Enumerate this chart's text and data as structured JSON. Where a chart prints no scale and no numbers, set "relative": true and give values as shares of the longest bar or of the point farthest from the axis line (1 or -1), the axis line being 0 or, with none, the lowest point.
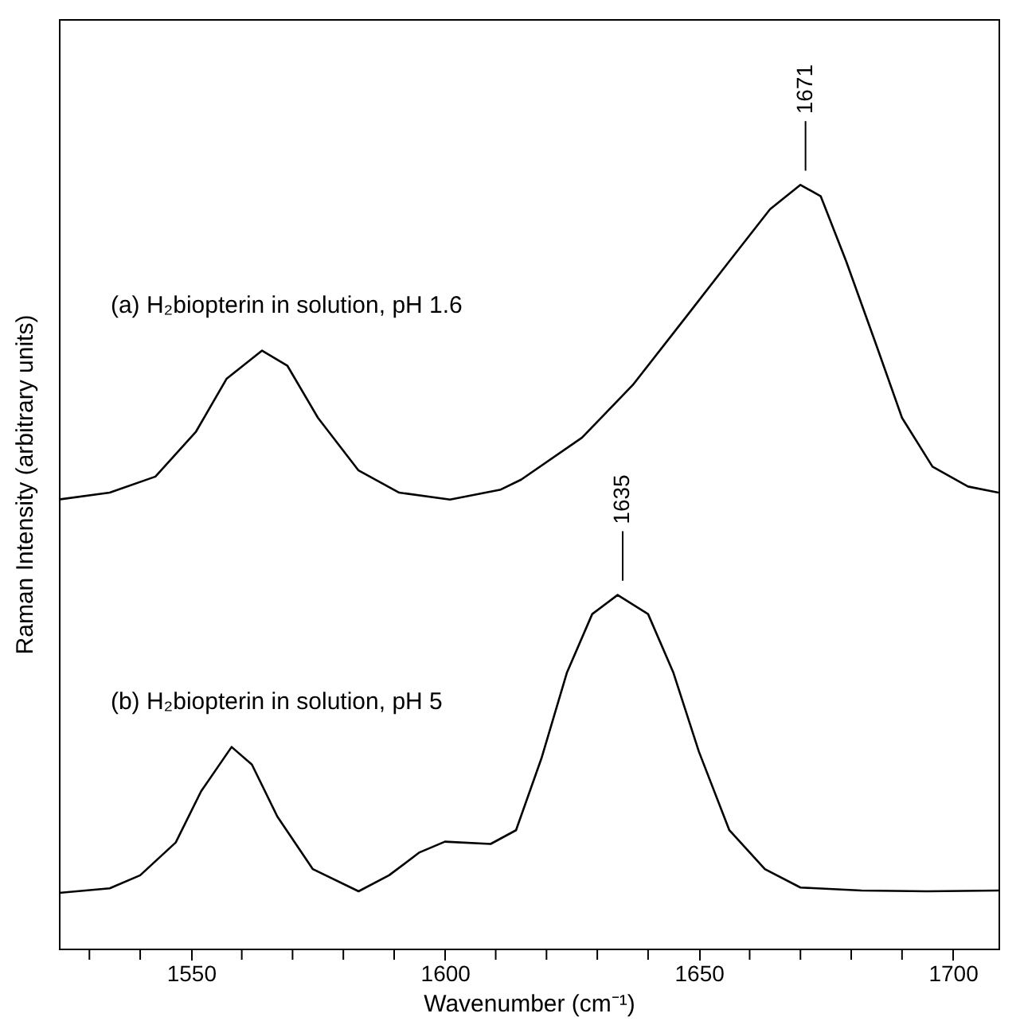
{
  "chart_data": {
    "type": "line",
    "relative": true,
    "xlabel": "Wavenumber (cm⁻¹)",
    "ylabel": "Raman Intensity (arbitrary units)",
    "xlim": [
      1524,
      1709
    ],
    "xticks": [
      {
        "value": 1530,
        "label": null
      },
      {
        "value": 1540,
        "label": null
      },
      1550,
      {
        "value": 1560,
        "label": null
      },
      {
        "value": 1570,
        "label": null
      },
      {
        "value": 1580,
        "label": null
      },
      {
        "value": 1590,
        "label": null
      },
      1600,
      {
        "value": 1610,
        "label": null
      },
      {
        "value": 1620,
        "label": null
      },
      {
        "value": 1630,
        "label": null
      },
      {
        "value": 1640,
        "label": null
      },
      1650,
      {
        "value": 1660,
        "label": null
      },
      {
        "value": 1670,
        "label": null
      },
      {
        "value": 1680,
        "label": null
      },
      {
        "value": 1690,
        "label": null
      },
      1700
    ],
    "series": [
      {
        "name": "(a) H₂biopterin in solution, pH 1.6",
        "color": "#000000",
        "x": [
          1524,
          1534,
          1543,
          1551,
          1557,
          1564,
          1569,
          1575,
          1583,
          1591,
          1601,
          1611,
          1615,
          1627,
          1637,
          1647,
          1656,
          1664,
          1670,
          1674,
          1679,
          1685,
          1690,
          1696,
          1703,
          1709
        ],
        "values": [
          0.588,
          0.597,
          0.618,
          0.677,
          0.746,
          0.783,
          0.763,
          0.695,
          0.626,
          0.597,
          0.588,
          0.601,
          0.614,
          0.669,
          0.738,
          0.823,
          0.9,
          0.968,
          1.0,
          0.985,
          0.9,
          0.789,
          0.695,
          0.631,
          0.605,
          0.597
        ]
      },
      {
        "name": "(b) H₂biopterin in solution, pH 5",
        "color": "#000000",
        "x": [
          1524,
          1534,
          1540,
          1547,
          1552,
          1558,
          1562,
          1567,
          1574,
          1583,
          1589,
          1595,
          1600,
          1609,
          1614,
          1619,
          1624,
          1629,
          1634,
          1640,
          1645,
          1650,
          1656,
          1663,
          1670,
          1682,
          1695,
          1709
        ],
        "values": [
          0.073,
          0.079,
          0.096,
          0.139,
          0.206,
          0.264,
          0.241,
          0.173,
          0.104,
          0.075,
          0.096,
          0.126,
          0.14,
          0.137,
          0.155,
          0.249,
          0.361,
          0.438,
          0.463,
          0.438,
          0.361,
          0.258,
          0.155,
          0.104,
          0.08,
          0.076,
          0.075,
          0.076
        ]
      }
    ],
    "annotations": [
      {
        "text": "1671",
        "x": 1671,
        "y": 1.0
      },
      {
        "text": "1635",
        "x": 1635,
        "y": 0.463
      }
    ]
  }
}
